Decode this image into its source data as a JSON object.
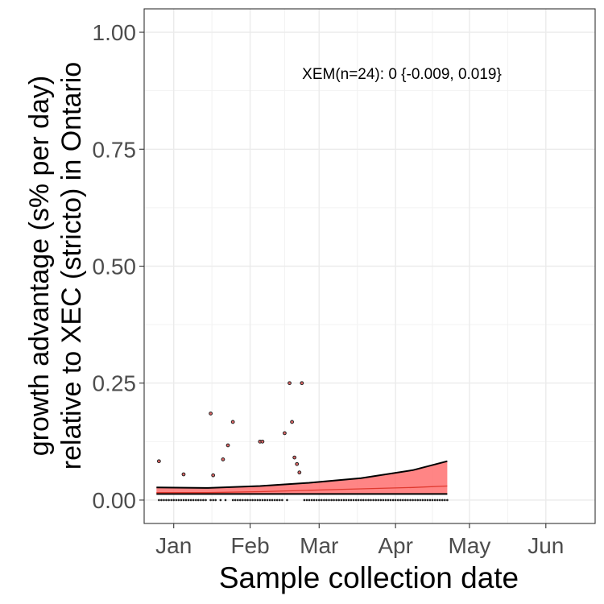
{
  "chart_data": {
    "type": "scatter",
    "title": "",
    "xlabel": "Sample collection date",
    "ylabel_line1": "growth advantage (s% per day)",
    "ylabel_line2": "relative to XEC (stricto) in Ontario",
    "annotation": "XEM(n=24): 0 {-0.009, 0.019}",
    "xlim": [
      "2024-12-20",
      "2025-06-21"
    ],
    "ylim": [
      -0.05,
      1.05
    ],
    "grid": true,
    "x_ticks": [
      {
        "date": "2025-01-01",
        "label": "Jan"
      },
      {
        "date": "2025-02-01",
        "label": "Feb"
      },
      {
        "date": "2025-03-01",
        "label": "Mar"
      },
      {
        "date": "2025-04-01",
        "label": "Apr"
      },
      {
        "date": "2025-05-01",
        "label": "May"
      },
      {
        "date": "2025-06-01",
        "label": "Jun"
      }
    ],
    "y_ticks": [
      {
        "value": 0,
        "label": "0.00"
      },
      {
        "value": 0.25,
        "label": "0.25"
      },
      {
        "value": 0.5,
        "label": "0.50"
      },
      {
        "value": 0.75,
        "label": "0.75"
      },
      {
        "value": 1,
        "label": "1.00"
      }
    ],
    "fit": {
      "color": "#ff6666",
      "x": [
        "2024-12-25",
        "2025-01-15",
        "2025-02-05",
        "2025-02-25",
        "2025-03-18",
        "2025-04-08",
        "2025-04-22"
      ],
      "y": [
        0.016,
        0.016,
        0.018,
        0.021,
        0.024,
        0.027,
        0.03
      ],
      "lower": [
        0.013,
        0.013,
        0.013,
        0.013,
        0.013,
        0.013,
        0.013
      ],
      "upper": [
        0.027,
        0.026,
        0.03,
        0.037,
        0.047,
        0.064,
        0.083
      ]
    },
    "points": [
      {
        "x": "2024-12-26",
        "y": 0.083
      },
      {
        "x": "2025-01-05",
        "y": 0.055
      },
      {
        "x": "2025-01-16",
        "y": 0.185
      },
      {
        "x": "2025-01-17",
        "y": 0.053
      },
      {
        "x": "2025-01-21",
        "y": 0.087
      },
      {
        "x": "2025-01-23",
        "y": 0.117
      },
      {
        "x": "2025-01-25",
        "y": 0.167
      },
      {
        "x": "2025-02-05",
        "y": 0.125
      },
      {
        "x": "2025-02-06",
        "y": 0.125
      },
      {
        "x": "2025-02-15",
        "y": 0.143
      },
      {
        "x": "2025-02-17",
        "y": 0.25
      },
      {
        "x": "2025-02-18",
        "y": 0.167
      },
      {
        "x": "2025-02-19",
        "y": 0.091
      },
      {
        "x": "2025-02-20",
        "y": 0.077
      },
      {
        "x": "2025-02-21",
        "y": 0.059
      },
      {
        "x": "2025-02-22",
        "y": 0.25
      }
    ],
    "zero_points": {
      "start": "2024-12-26",
      "end": "2025-04-22",
      "y": 0,
      "gaps": [
        [
          "2025-01-15",
          "2025-01-15"
        ],
        [
          "2025-01-19",
          "2025-01-19"
        ],
        [
          "2025-01-21",
          "2025-01-21"
        ],
        [
          "2025-01-23",
          "2025-01-24"
        ],
        [
          "2025-02-15",
          "2025-02-15"
        ],
        [
          "2025-02-17",
          "2025-02-22"
        ]
      ]
    }
  }
}
